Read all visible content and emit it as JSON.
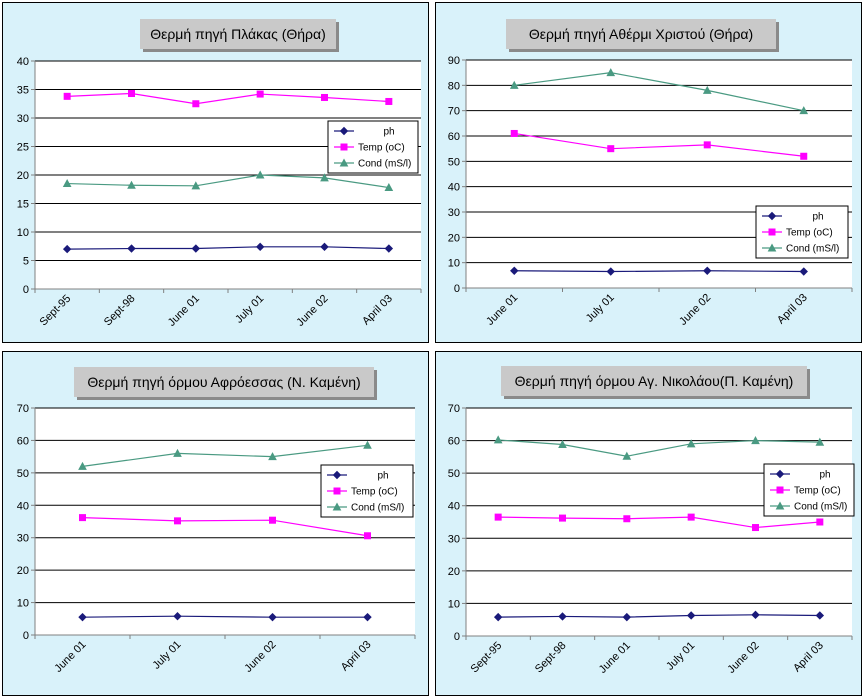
{
  "colors": {
    "panel_bg": "#d9f2fa",
    "ph": "#1a1a7a",
    "temp": "#ff00ff",
    "cond": "#4a9a82",
    "title_bg": "#c9c9c9"
  },
  "chart_data": [
    {
      "type": "line",
      "title": "Θερμή πηγή Πλάκας (Θήρα)",
      "categories": [
        "Sept-95",
        "Sept-98",
        "June 01",
        "July 01",
        "June 02",
        "April 03"
      ],
      "ylim": [
        0,
        40
      ],
      "yticks": [
        0,
        5,
        10,
        15,
        20,
        25,
        30,
        35,
        40
      ],
      "legend_position": "right",
      "grid": true,
      "series": [
        {
          "name": "ph",
          "marker": "diamond",
          "values": [
            7,
            7.1,
            7.1,
            7.4,
            7.4,
            7.1
          ]
        },
        {
          "name": "Temp (oC)",
          "marker": "square",
          "values": [
            33.8,
            34.3,
            32.5,
            34.2,
            33.6,
            32.9
          ]
        },
        {
          "name": "Cond (mS/l)",
          "marker": "triangle",
          "values": [
            18.5,
            18.2,
            18.1,
            20,
            19.5,
            17.8
          ]
        }
      ]
    },
    {
      "type": "line",
      "title": "Θερμή πηγή Αθέρμι Χριστού (Θήρα)",
      "categories": [
        "June 01",
        "July 01",
        "June 02",
        "April 03"
      ],
      "ylim": [
        0,
        90
      ],
      "yticks": [
        0,
        10,
        20,
        30,
        40,
        50,
        60,
        70,
        80,
        90
      ],
      "legend_position": "bottom-right",
      "grid": true,
      "series": [
        {
          "name": "ph",
          "marker": "diamond",
          "values": [
            6.8,
            6.5,
            6.8,
            6.5
          ]
        },
        {
          "name": "Temp (oC)",
          "marker": "square",
          "values": [
            61,
            55,
            56.5,
            52
          ]
        },
        {
          "name": "Cond (mS/l)",
          "marker": "triangle",
          "values": [
            80,
            85,
            78,
            70
          ]
        }
      ]
    },
    {
      "type": "line",
      "title": "Θερμή πηγή όρμου Αφρόεσσας (Ν. Καμένη)",
      "categories": [
        "June 01",
        "July 01",
        "June 02",
        "April 03"
      ],
      "ylim": [
        0,
        70
      ],
      "yticks": [
        0,
        10,
        20,
        30,
        40,
        50,
        60,
        70
      ],
      "legend_position": "right",
      "grid": true,
      "series": [
        {
          "name": "ph",
          "marker": "diamond",
          "values": [
            5.5,
            5.8,
            5.5,
            5.5
          ]
        },
        {
          "name": "Temp (oC)",
          "marker": "square",
          "values": [
            36.2,
            35.2,
            35.4,
            30.6
          ]
        },
        {
          "name": "Cond (mS/l)",
          "marker": "triangle",
          "values": [
            52,
            56,
            55,
            58.5
          ]
        }
      ]
    },
    {
      "type": "line",
      "title": "Θερμή πηγή όρμου Αγ. Νικολάου(Π. Καμένη)",
      "categories": [
        "Sept-95",
        "Sept-98",
        "June 01",
        "July 01",
        "June 02",
        "April 03"
      ],
      "ylim": [
        0,
        70
      ],
      "yticks": [
        0,
        10,
        20,
        30,
        40,
        50,
        60,
        70
      ],
      "legend_position": "right",
      "grid": true,
      "series": [
        {
          "name": "ph",
          "marker": "diamond",
          "values": [
            5.8,
            6,
            5.8,
            6.3,
            6.5,
            6.3
          ]
        },
        {
          "name": "Temp (oC)",
          "marker": "square",
          "values": [
            36.5,
            36.2,
            36,
            36.5,
            33.3,
            35
          ]
        },
        {
          "name": "Cond (mS/l)",
          "marker": "triangle",
          "values": [
            60.2,
            58.8,
            55.2,
            59,
            60,
            59.5
          ]
        }
      ]
    }
  ]
}
